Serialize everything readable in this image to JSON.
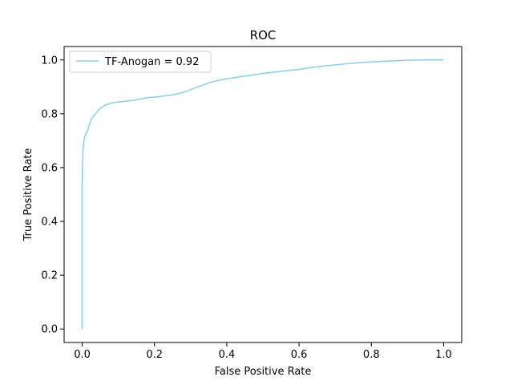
{
  "chart_data": {
    "type": "line",
    "title": "ROC",
    "xlabel": "False Positive Rate",
    "ylabel": "True Positive Rate",
    "xlim": [
      -0.05,
      1.05
    ],
    "ylim": [
      -0.05,
      1.05
    ],
    "xticks": [
      0.0,
      0.2,
      0.4,
      0.6,
      0.8,
      1.0
    ],
    "yticks": [
      0.0,
      0.2,
      0.4,
      0.6,
      0.8,
      1.0
    ],
    "xtick_labels": [
      "0.0",
      "0.2",
      "0.4",
      "0.6",
      "0.8",
      "1.0"
    ],
    "ytick_labels": [
      "0.0",
      "0.2",
      "0.4",
      "0.6",
      "0.8",
      "1.0"
    ],
    "grid": false,
    "legend_position": "top-left",
    "series": [
      {
        "name": "TF-Anogan = 0.92",
        "color": "#87CEEB",
        "x": [
          0.0,
          0.0,
          0.001,
          0.002,
          0.003,
          0.005,
          0.008,
          0.012,
          0.015,
          0.02,
          0.025,
          0.03,
          0.04,
          0.05,
          0.06,
          0.07,
          0.08,
          0.09,
          0.1,
          0.12,
          0.14,
          0.16,
          0.18,
          0.2,
          0.22,
          0.25,
          0.28,
          0.3,
          0.32,
          0.35,
          0.38,
          0.4,
          0.45,
          0.5,
          0.55,
          0.6,
          0.65,
          0.7,
          0.75,
          0.8,
          0.85,
          0.9,
          0.95,
          1.0
        ],
        "y": [
          0.0,
          0.55,
          0.6,
          0.65,
          0.68,
          0.7,
          0.72,
          0.73,
          0.74,
          0.76,
          0.78,
          0.79,
          0.805,
          0.82,
          0.83,
          0.835,
          0.84,
          0.842,
          0.844,
          0.847,
          0.85,
          0.855,
          0.86,
          0.862,
          0.865,
          0.87,
          0.88,
          0.89,
          0.9,
          0.915,
          0.925,
          0.93,
          0.94,
          0.95,
          0.958,
          0.965,
          0.975,
          0.982,
          0.988,
          0.993,
          0.996,
          0.999,
          1.0,
          1.0
        ]
      }
    ]
  }
}
